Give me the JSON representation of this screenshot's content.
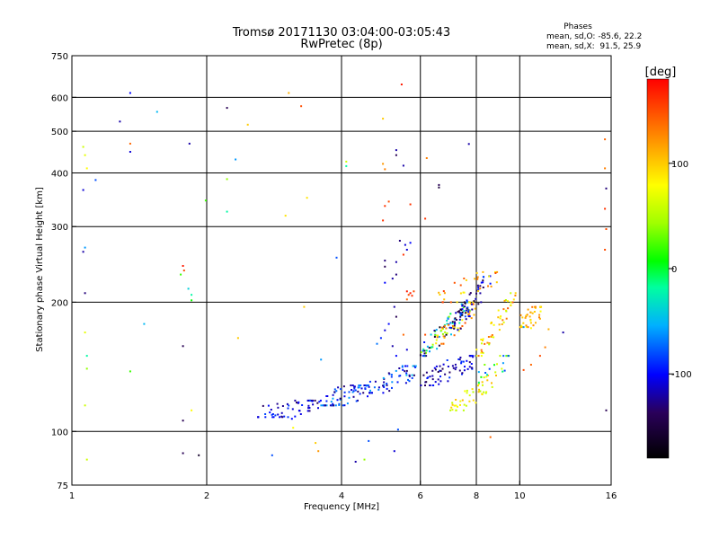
{
  "chart_data": {
    "type": "scatter",
    "title": "Tromsø 20171130 03:04:00-03:05:43",
    "subtitle": "RwPretec (8p)",
    "phase_stats": {
      "heading": "Phases",
      "line_o": "mean, sd,O: -85.6, 22.2",
      "line_x": "mean, sd,X:  91.5, 25.9"
    },
    "xlabel": "Frequency [MHz]",
    "ylabel": "Stationary phase Virtual Height [km]",
    "xscale": "log",
    "yscale": "log",
    "xlim": [
      1,
      16
    ],
    "ylim": [
      75,
      750
    ],
    "xticks": [
      1,
      2,
      4,
      6,
      8,
      10,
      16
    ],
    "yticks": [
      75,
      100,
      200,
      300,
      400,
      500,
      600,
      750
    ],
    "xgrid": [
      2,
      4,
      6,
      8,
      10
    ],
    "ygrid": [
      100,
      200,
      300,
      400,
      500,
      600
    ],
    "grid": true,
    "colorbar": {
      "label": "[deg]",
      "range": [
        -180,
        180
      ],
      "ticks": [
        100,
        0,
        -100
      ]
    },
    "points": [
      {
        "x": 1.06,
        "y": 460,
        "phase": 60
      },
      {
        "x": 1.07,
        "y": 440,
        "phase": 70
      },
      {
        "x": 1.08,
        "y": 410,
        "phase": 80
      },
      {
        "x": 1.06,
        "y": 365,
        "phase": -110
      },
      {
        "x": 1.07,
        "y": 268,
        "phase": -60
      },
      {
        "x": 1.06,
        "y": 262,
        "phase": -120
      },
      {
        "x": 1.07,
        "y": 210,
        "phase": -130
      },
      {
        "x": 1.07,
        "y": 170,
        "phase": 70
      },
      {
        "x": 1.08,
        "y": 150,
        "phase": -20
      },
      {
        "x": 1.08,
        "y": 140,
        "phase": 40
      },
      {
        "x": 1.07,
        "y": 115,
        "phase": 60
      },
      {
        "x": 1.08,
        "y": 86,
        "phase": 60
      },
      {
        "x": 1.13,
        "y": 385,
        "phase": -80
      },
      {
        "x": 1.28,
        "y": 527,
        "phase": -120
      },
      {
        "x": 1.35,
        "y": 614,
        "phase": -100
      },
      {
        "x": 1.35,
        "y": 468,
        "phase": 140
      },
      {
        "x": 1.35,
        "y": 448,
        "phase": -110
      },
      {
        "x": 1.55,
        "y": 555,
        "phase": -50
      },
      {
        "x": 1.45,
        "y": 178,
        "phase": -50
      },
      {
        "x": 1.35,
        "y": 138,
        "phase": 20
      },
      {
        "x": 1.77,
        "y": 243,
        "phase": 170
      },
      {
        "x": 1.78,
        "y": 237,
        "phase": 150
      },
      {
        "x": 1.75,
        "y": 232,
        "phase": 20
      },
      {
        "x": 1.82,
        "y": 215,
        "phase": -40
      },
      {
        "x": 1.85,
        "y": 208,
        "phase": -20
      },
      {
        "x": 1.85,
        "y": 202,
        "phase": 10
      },
      {
        "x": 1.77,
        "y": 158,
        "phase": -140
      },
      {
        "x": 1.77,
        "y": 106,
        "phase": -140
      },
      {
        "x": 1.85,
        "y": 112,
        "phase": 80
      },
      {
        "x": 1.77,
        "y": 89,
        "phase": -140
      },
      {
        "x": 1.83,
        "y": 468,
        "phase": -120
      },
      {
        "x": 1.92,
        "y": 88,
        "phase": -160
      },
      {
        "x": 1.99,
        "y": 345,
        "phase": 20
      },
      {
        "x": 2.22,
        "y": 567,
        "phase": -140
      },
      {
        "x": 2.22,
        "y": 387,
        "phase": 40
      },
      {
        "x": 2.22,
        "y": 325,
        "phase": -20
      },
      {
        "x": 2.32,
        "y": 430,
        "phase": -60
      },
      {
        "x": 2.35,
        "y": 165,
        "phase": 100
      },
      {
        "x": 2.47,
        "y": 518,
        "phase": 100
      },
      {
        "x": 3.05,
        "y": 614,
        "phase": 110
      },
      {
        "x": 3.25,
        "y": 572,
        "phase": 150
      },
      {
        "x": 3.0,
        "y": 318,
        "phase": 90
      },
      {
        "x": 3.35,
        "y": 350,
        "phase": 90
      },
      {
        "x": 3.1,
        "y": 107,
        "phase": -100
      },
      {
        "x": 3.12,
        "y": 102,
        "phase": 80
      },
      {
        "x": 2.8,
        "y": 88,
        "phase": -80
      },
      {
        "x": 3.5,
        "y": 94,
        "phase": 100
      },
      {
        "x": 3.55,
        "y": 90,
        "phase": 120
      },
      {
        "x": 3.6,
        "y": 147,
        "phase": -60
      },
      {
        "x": 3.3,
        "y": 195,
        "phase": 100
      },
      {
        "x": 3.9,
        "y": 254,
        "phase": -80
      },
      {
        "x": 4.1,
        "y": 425,
        "phase": 60
      },
      {
        "x": 4.1,
        "y": 415,
        "phase": -20
      },
      {
        "x": 4.3,
        "y": 85,
        "phase": -120
      },
      {
        "x": 4.5,
        "y": 86,
        "phase": 40
      },
      {
        "x": 4.6,
        "y": 95,
        "phase": -80
      },
      {
        "x": 4.95,
        "y": 535,
        "phase": 100
      },
      {
        "x": 4.95,
        "y": 420,
        "phase": 120
      },
      {
        "x": 5.0,
        "y": 408,
        "phase": 130
      },
      {
        "x": 5.1,
        "y": 343,
        "phase": 150
      },
      {
        "x": 5.0,
        "y": 335,
        "phase": 160
      },
      {
        "x": 4.95,
        "y": 310,
        "phase": 160
      },
      {
        "x": 5.3,
        "y": 452,
        "phase": -120
      },
      {
        "x": 5.3,
        "y": 440,
        "phase": -140
      },
      {
        "x": 5.5,
        "y": 416,
        "phase": -120
      },
      {
        "x": 5.45,
        "y": 643,
        "phase": 170
      },
      {
        "x": 5.25,
        "y": 90,
        "phase": -110
      },
      {
        "x": 5.35,
        "y": 101,
        "phase": -80
      },
      {
        "x": 5.7,
        "y": 338,
        "phase": 160
      },
      {
        "x": 6.15,
        "y": 313,
        "phase": 160
      },
      {
        "x": 6.2,
        "y": 433,
        "phase": 130
      },
      {
        "x": 6.6,
        "y": 375,
        "phase": -140
      },
      {
        "x": 6.6,
        "y": 370,
        "phase": -150
      },
      {
        "x": 7.7,
        "y": 467,
        "phase": -120
      },
      {
        "x": 8.6,
        "y": 97,
        "phase": 140
      },
      {
        "x": 8.2,
        "y": 200,
        "phase": -120
      },
      {
        "x": 5.4,
        "y": 278,
        "phase": -130
      },
      {
        "x": 5.55,
        "y": 272,
        "phase": -110
      },
      {
        "x": 5.6,
        "y": 265,
        "phase": -110
      },
      {
        "x": 5.7,
        "y": 275,
        "phase": -100
      },
      {
        "x": 5.5,
        "y": 258,
        "phase": 160
      },
      {
        "x": 5.0,
        "y": 250,
        "phase": -130
      },
      {
        "x": 5.0,
        "y": 242,
        "phase": -140
      },
      {
        "x": 5.3,
        "y": 248,
        "phase": -120
      },
      {
        "x": 5.3,
        "y": 232,
        "phase": -130
      },
      {
        "x": 5.2,
        "y": 227,
        "phase": -120
      },
      {
        "x": 5.0,
        "y": 222,
        "phase": -100
      },
      {
        "x": 5.6,
        "y": 212,
        "phase": 170
      },
      {
        "x": 5.65,
        "y": 208,
        "phase": 150
      },
      {
        "x": 5.7,
        "y": 210,
        "phase": 170
      },
      {
        "x": 5.75,
        "y": 207,
        "phase": 160
      },
      {
        "x": 5.8,
        "y": 212,
        "phase": 150
      },
      {
        "x": 5.6,
        "y": 203,
        "phase": 140
      },
      {
        "x": 5.25,
        "y": 195,
        "phase": -120
      },
      {
        "x": 5.3,
        "y": 185,
        "phase": -140
      },
      {
        "x": 5.1,
        "y": 178,
        "phase": -100
      },
      {
        "x": 5.0,
        "y": 172,
        "phase": -110
      },
      {
        "x": 4.9,
        "y": 165,
        "phase": -90
      },
      {
        "x": 4.8,
        "y": 160,
        "phase": -70
      },
      {
        "x": 5.5,
        "y": 168,
        "phase": 140
      },
      {
        "x": 5.2,
        "y": 158,
        "phase": -120
      },
      {
        "x": 5.3,
        "y": 150,
        "phase": -100
      },
      {
        "x": 5.6,
        "y": 155,
        "phase": -110
      },
      {
        "x": 6.15,
        "y": 168,
        "phase": 150
      },
      {
        "x": 10.4,
        "y": 187,
        "phase": 120
      },
      {
        "x": 10.8,
        "y": 190,
        "phase": 100
      },
      {
        "x": 11.1,
        "y": 183,
        "phase": 110
      },
      {
        "x": 10.2,
        "y": 175,
        "phase": -60
      },
      {
        "x": 10.6,
        "y": 174,
        "phase": 80
      },
      {
        "x": 11.6,
        "y": 173,
        "phase": 110
      },
      {
        "x": 12.5,
        "y": 170,
        "phase": -120
      },
      {
        "x": 11.4,
        "y": 157,
        "phase": 130
      },
      {
        "x": 11.1,
        "y": 150,
        "phase": 150
      },
      {
        "x": 10.6,
        "y": 143,
        "phase": 140
      },
      {
        "x": 10.2,
        "y": 139,
        "phase": 150
      },
      {
        "x": 15.5,
        "y": 479,
        "phase": 140
      },
      {
        "x": 15.5,
        "y": 410,
        "phase": 130
      },
      {
        "x": 15.6,
        "y": 368,
        "phase": -130
      },
      {
        "x": 15.5,
        "y": 330,
        "phase": 160
      },
      {
        "x": 15.6,
        "y": 296,
        "phase": 150
      },
      {
        "x": 15.5,
        "y": 265,
        "phase": 150
      },
      {
        "x": 15.6,
        "y": 112,
        "phase": -140
      }
    ],
    "clusters": [
      {
        "x_from": 2.6,
        "x_to": 3.6,
        "y_from": 108,
        "y_to": 118,
        "n": 55,
        "phase": -110,
        "spread": 30
      },
      {
        "x_from": 3.6,
        "x_to": 4.6,
        "y_from": 115,
        "y_to": 128,
        "n": 70,
        "phase": -95,
        "spread": 40
      },
      {
        "x_from": 4.6,
        "x_to": 5.9,
        "y_from": 123,
        "y_to": 142,
        "n": 55,
        "phase": -90,
        "spread": 45
      },
      {
        "x_from": 6.0,
        "x_to": 8.0,
        "y_from": 128,
        "y_to": 150,
        "n": 70,
        "phase": -115,
        "spread": 30
      },
      {
        "x_from": 7.0,
        "x_to": 9.0,
        "y_from": 112,
        "y_to": 135,
        "n": 45,
        "phase": 80,
        "spread": 30
      },
      {
        "x_from": 8.0,
        "x_to": 9.5,
        "y_from": 130,
        "y_to": 150,
        "n": 20,
        "phase": -10,
        "spread": 80
      },
      {
        "x_from": 6.0,
        "x_to": 7.8,
        "y_from": 150,
        "y_to": 200,
        "n": 80,
        "phase": -60,
        "spread": 120
      },
      {
        "x_from": 6.5,
        "x_to": 8.0,
        "y_from": 160,
        "y_to": 200,
        "n": 40,
        "phase": 110,
        "spread": 40
      },
      {
        "x_from": 7.0,
        "x_to": 8.6,
        "y_from": 170,
        "y_to": 230,
        "n": 50,
        "phase": -120,
        "spread": 40
      },
      {
        "x_from": 8.0,
        "x_to": 9.8,
        "y_from": 150,
        "y_to": 210,
        "n": 50,
        "phase": 100,
        "spread": 50
      },
      {
        "x_from": 6.5,
        "x_to": 9.0,
        "y_from": 200,
        "y_to": 235,
        "n": 30,
        "phase": 120,
        "spread": 40
      },
      {
        "x_from": 10.0,
        "x_to": 11.2,
        "y_from": 175,
        "y_to": 195,
        "n": 35,
        "phase": 110,
        "spread": 35
      }
    ]
  }
}
